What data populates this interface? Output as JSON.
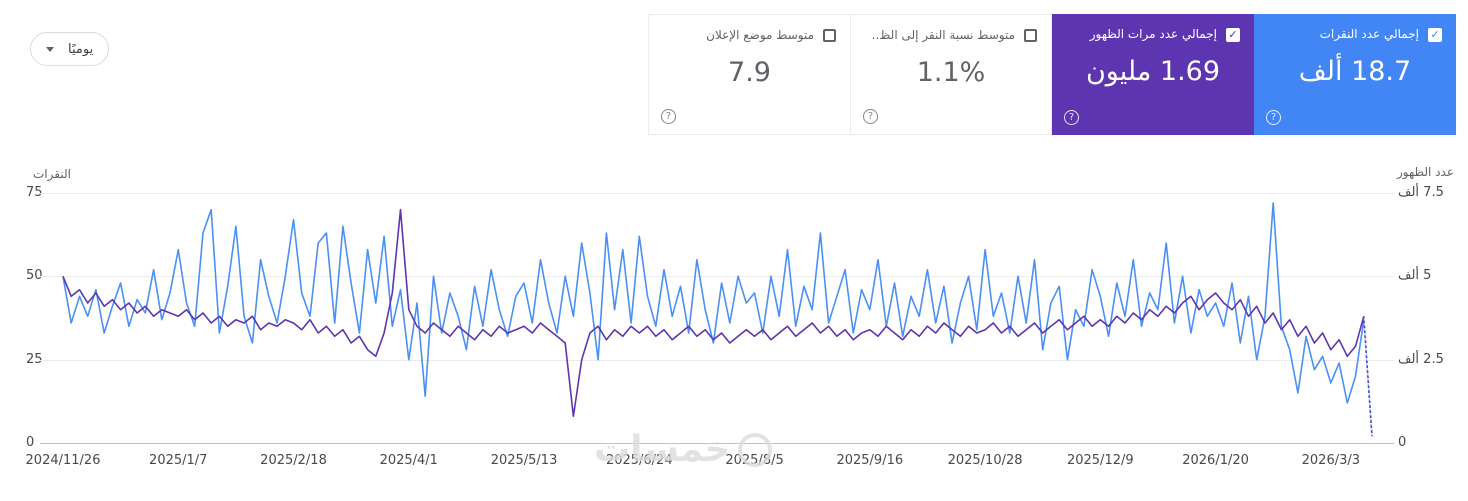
{
  "icons": {
    "check": "✓",
    "help": "?"
  },
  "toolbar": {
    "granularity": "يوميًا"
  },
  "cards": [
    {
      "id": "clicks",
      "label": "إجمالي عدد النقرات",
      "value": "18.7 ألف",
      "selected": true,
      "color": "#4285f4"
    },
    {
      "id": "impressions",
      "label": "إجمالي عدد مرات الظهور",
      "value": "1.69 مليون",
      "selected": true,
      "color": "#5e35b1"
    },
    {
      "id": "ctr",
      "label": "متوسط نسبة النقر إلى الظ..",
      "value": "1.1%",
      "selected": false,
      "color": "#ffffff"
    },
    {
      "id": "position",
      "label": "متوسط موضع الإعلان",
      "value": "7.9",
      "selected": false,
      "color": "#ffffff"
    }
  ],
  "chart_data": {
    "type": "line",
    "title": "",
    "y_left": {
      "title": "النقرات",
      "ticks": [
        "75",
        "50",
        "25",
        "0"
      ],
      "max": 75
    },
    "y_right": {
      "title": "عدد الظهور",
      "ticks": [
        "7.5 ألف",
        "5 ألف",
        "2.5 ألف",
        "0"
      ],
      "max": 7500
    },
    "x_tick_labels": [
      "2024/11/26",
      "2025/1/7",
      "2025/2/18",
      "2025/4/1",
      "2025/5/13",
      "2025/6/24",
      "2025/8/5",
      "2025/9/16",
      "2025/10/28",
      "2025/12/9",
      "2026/1/20",
      "2026/3/3"
    ],
    "points_per_tick": 14,
    "dashed_tail_segments": 1,
    "legend_position": "none",
    "grid": true,
    "series": [
      {
        "name": "النقرات",
        "axis": "left",
        "color": "#4a90f5",
        "values": [
          50,
          36,
          44,
          38,
          46,
          33,
          41,
          48,
          35,
          43,
          39,
          52,
          37,
          45,
          58,
          42,
          35,
          63,
          70,
          33,
          47,
          65,
          38,
          30,
          55,
          44,
          36,
          50,
          67,
          45,
          38,
          60,
          63,
          36,
          65,
          48,
          33,
          58,
          42,
          62,
          35,
          46,
          25,
          42,
          14,
          50,
          33,
          45,
          38,
          28,
          47,
          35,
          52,
          40,
          32,
          44,
          48,
          36,
          55,
          42,
          33,
          50,
          38,
          60,
          45,
          25,
          63,
          40,
          58,
          36,
          62,
          44,
          35,
          52,
          38,
          47,
          33,
          55,
          40,
          30,
          48,
          36,
          50,
          42,
          45,
          33,
          50,
          38,
          58,
          35,
          47,
          40,
          63,
          36,
          44,
          52,
          33,
          46,
          40,
          55,
          35,
          48,
          32,
          44,
          38,
          52,
          36,
          47,
          30,
          42,
          50,
          34,
          58,
          38,
          45,
          33,
          50,
          36,
          55,
          28,
          42,
          47,
          25,
          40,
          35,
          52,
          44,
          32,
          48,
          38,
          55,
          35,
          45,
          40,
          60,
          36,
          50,
          33,
          46,
          38,
          42,
          35,
          48,
          30,
          44,
          25,
          38,
          72,
          35,
          28,
          15,
          32,
          22,
          26,
          18,
          24,
          12,
          20,
          37,
          2
        ]
      },
      {
        "name": "مرات الظهور",
        "axis": "right",
        "color": "#5e35b1",
        "values": [
          5000,
          4400,
          4600,
          4200,
          4500,
          4100,
          4300,
          4000,
          4200,
          3900,
          4100,
          3800,
          4000,
          3900,
          3800,
          4000,
          3700,
          3900,
          3600,
          3800,
          3500,
          3700,
          3600,
          3800,
          3400,
          3600,
          3500,
          3700,
          3600,
          3400,
          3700,
          3300,
          3500,
          3200,
          3400,
          3000,
          3200,
          2800,
          2600,
          3300,
          4500,
          7000,
          4000,
          3500,
          3300,
          3600,
          3400,
          3200,
          3500,
          3300,
          3100,
          3400,
          3200,
          3500,
          3300,
          3400,
          3500,
          3300,
          3600,
          3400,
          3200,
          3000,
          800,
          2500,
          3300,
          3500,
          3100,
          3400,
          3200,
          3500,
          3300,
          3500,
          3200,
          3400,
          3100,
          3300,
          3500,
          3200,
          3400,
          3100,
          3300,
          3000,
          3200,
          3400,
          3200,
          3400,
          3100,
          3300,
          3500,
          3200,
          3400,
          3600,
          3300,
          3500,
          3200,
          3400,
          3100,
          3300,
          3400,
          3200,
          3500,
          3300,
          3100,
          3400,
          3200,
          3500,
          3300,
          3600,
          3400,
          3200,
          3500,
          3300,
          3400,
          3600,
          3300,
          3500,
          3200,
          3400,
          3600,
          3300,
          3500,
          3700,
          3400,
          3600,
          3800,
          3500,
          3700,
          3500,
          3800,
          3600,
          3900,
          3700,
          4000,
          3800,
          4100,
          3900,
          4200,
          4400,
          4000,
          4300,
          4500,
          4200,
          4000,
          4300,
          3800,
          4100,
          3600,
          3900,
          3400,
          3700,
          3200,
          3500,
          3000,
          3300,
          2800,
          3100,
          2600,
          2900,
          3800,
          200
        ]
      }
    ]
  },
  "watermark": {
    "text": "خمسات"
  }
}
